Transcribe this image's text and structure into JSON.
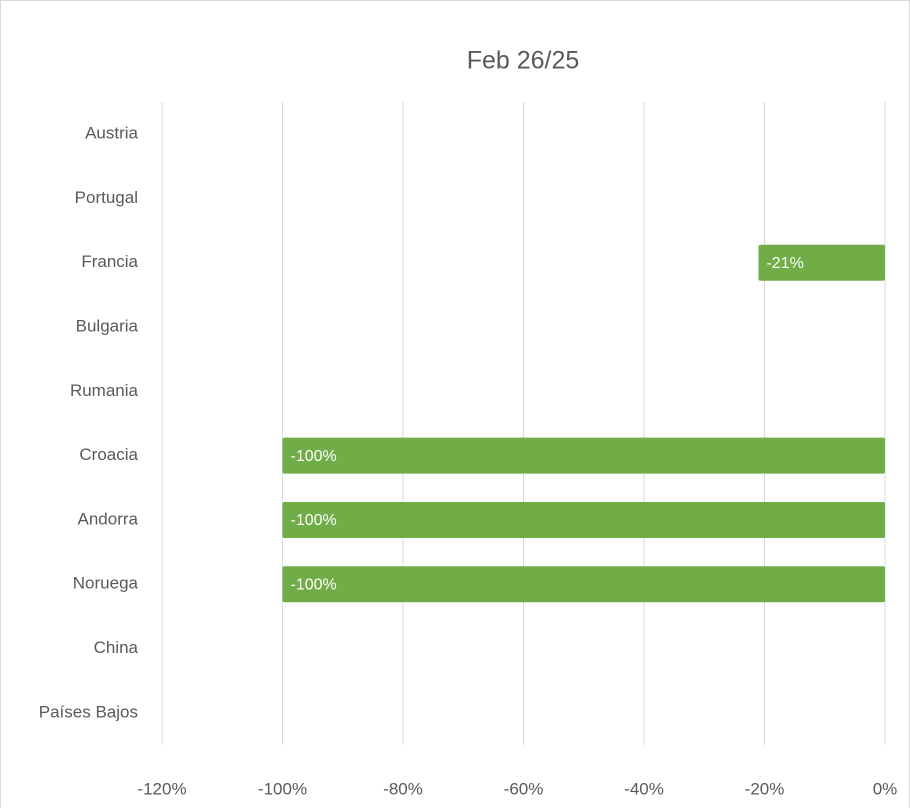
{
  "chart_data": {
    "type": "hbar",
    "title": "Feb 26/25",
    "categories": [
      "Austria",
      "Portugal",
      "Francia",
      "Bulgaria",
      "Rumania",
      "Croacia",
      "Andorra",
      "Noruega",
      "China",
      "Países Bajos"
    ],
    "values": [
      null,
      null,
      -21,
      null,
      null,
      -100,
      -100,
      -100,
      null,
      null
    ],
    "value_labels": [
      null,
      null,
      "-21%",
      null,
      null,
      "-100%",
      "-100%",
      "-100%",
      null,
      null
    ],
    "color": "#70ad47",
    "xlim": [
      -120,
      0
    ],
    "xticks": [
      {
        "value": -120,
        "label": "-120%"
      },
      {
        "value": -100,
        "label": "-100%"
      },
      {
        "value": -80,
        "label": "-80%"
      },
      {
        "value": -60,
        "label": "-60%"
      },
      {
        "value": -40,
        "label": "-40%"
      },
      {
        "value": -20,
        "label": "-20%"
      },
      {
        "value": 0,
        "label": "0%"
      }
    ],
    "grid": true
  }
}
